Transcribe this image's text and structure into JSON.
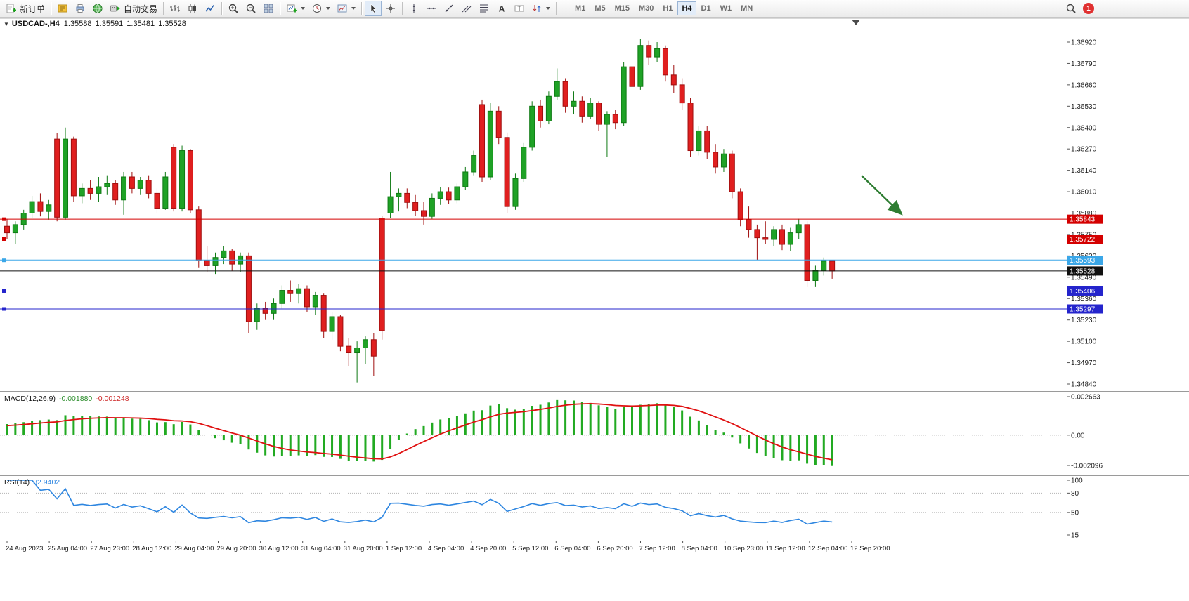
{
  "toolbar": {
    "new_order_label": "新订单",
    "autotrading_label": "自动交易",
    "timeframes": [
      "M1",
      "M5",
      "M15",
      "M30",
      "H1",
      "H4",
      "D1",
      "W1",
      "MN"
    ],
    "active_timeframe": "H4",
    "notification_count": "1",
    "icon_names": [
      "new-order-icon",
      "editor-icon",
      "printer-icon",
      "globe-icon",
      "autotrading-icon",
      "bar-chart-icon",
      "candlestick-chart-icon",
      "line-chart-icon",
      "zoom-in-icon",
      "zoom-out-icon",
      "tile-windows-icon",
      "new-chart-icon",
      "clock-icon",
      "template-icon",
      "cursor-icon",
      "crosshair-icon",
      "vertical-line-icon",
      "horizontal-line-icon",
      "trendline-icon",
      "channel-icon",
      "fibonacci-icon",
      "text-icon",
      "text-label-icon",
      "arrows-icon",
      "search-icon",
      "notification-badge"
    ]
  },
  "chart_title": {
    "collapse_icon": "▼",
    "symbol_period": "USDCAD-,H4",
    "open": "1.35588",
    "high": "1.35591",
    "low": "1.35481",
    "close": "1.35528"
  },
  "indicators": {
    "macd": {
      "label": "MACD(12,26,9)",
      "value_main": "-0.001880",
      "value_signal": "-0.001248",
      "y_ticks": [
        "0.002663",
        "0.00",
        "-0.002096"
      ],
      "histogram_color": "#22aa22",
      "signal_color": "#e01010"
    },
    "rsi": {
      "label": "RSI(14)",
      "value": "32.9402",
      "y_ticks": [
        "100",
        "80",
        "50",
        "15"
      ],
      "level_lines": [
        80,
        50
      ],
      "line_color": "#2e86e0"
    }
  },
  "chart_data": [
    {
      "type": "candlestick",
      "title": "USDCAD-,H4",
      "symbol": "USDCAD",
      "period": "H4",
      "up_color": "#1fa226",
      "down_color": "#e01f1f",
      "y_ticks": [
        "1.36920",
        "1.36790",
        "1.36660",
        "1.36530",
        "1.36400",
        "1.36270",
        "1.36140",
        "1.36010",
        "1.35880",
        "1.35750",
        "1.35620",
        "1.35490",
        "1.35360",
        "1.35230",
        "1.35100",
        "1.34970",
        "1.34840"
      ],
      "x_labels": [
        "24 Aug 2023",
        "25 Aug 04:00",
        "27 Aug 23:00",
        "28 Aug 12:00",
        "29 Aug 04:00",
        "29 Aug 20:00",
        "30 Aug 12:00",
        "31 Aug 04:00",
        "31 Aug 20:00",
        "1 Sep 12:00",
        "4 Sep 04:00",
        "4 Sep 20:00",
        "5 Sep 12:00",
        "6 Sep 04:00",
        "6 Sep 20:00",
        "7 Sep 12:00",
        "8 Sep 04:00",
        "10 Sep 23:00",
        "11 Sep 12:00",
        "12 Sep 04:00",
        "12 Sep 20:00"
      ],
      "price_lines": [
        {
          "label": "1.35843",
          "price": 1.35843,
          "color": "#d40000",
          "width": 1,
          "handle": true
        },
        {
          "label": "1.35722",
          "price": 1.35722,
          "color": "#d40000",
          "width": 1,
          "handle": true
        },
        {
          "label": "1.35593",
          "price": 1.35593,
          "color": "#3ba7e8",
          "width": 2,
          "handle": true
        },
        {
          "label": "1.35528",
          "price": 1.35528,
          "color": "#101010",
          "width": 1,
          "handle": false,
          "is_current_price": true
        },
        {
          "label": "1.35406",
          "price": 1.35406,
          "color": "#2424cc",
          "width": 1,
          "handle": true
        },
        {
          "label": "1.35297",
          "price": 1.35297,
          "color": "#2424cc",
          "width": 1,
          "handle": true
        }
      ],
      "annotations": [
        {
          "type": "arrow",
          "direction": "down-right",
          "color": "#2e7d32",
          "points_to_price": 1.35843
        }
      ],
      "candles": [
        [
          1.358,
          1.35845,
          1.3572,
          1.3576
        ],
        [
          1.3576,
          1.3583,
          1.3569,
          1.3581
        ],
        [
          1.3581,
          1.359,
          1.3578,
          1.3588
        ],
        [
          1.3588,
          1.35985,
          1.3585,
          1.3595
        ],
        [
          1.3595,
          1.36,
          1.3586,
          1.3589
        ],
        [
          1.3589,
          1.3596,
          1.3584,
          1.3593
        ],
        [
          1.3633,
          1.36365,
          1.3583,
          1.35855
        ],
        [
          1.35855,
          1.364,
          1.3584,
          1.3633
        ],
        [
          1.3633,
          1.36345,
          1.3595,
          1.35985
        ],
        [
          1.35985,
          1.3606,
          1.3594,
          1.3603
        ],
        [
          1.3603,
          1.3608,
          1.3596,
          1.36
        ],
        [
          1.36,
          1.361,
          1.3595,
          1.3604
        ],
        [
          1.3604,
          1.3611,
          1.3599,
          1.3606
        ],
        [
          1.3606,
          1.3608,
          1.3593,
          1.3596
        ],
        [
          1.3596,
          1.3613,
          1.3587,
          1.361
        ],
        [
          1.361,
          1.3613,
          1.36,
          1.3603
        ],
        [
          1.3603,
          1.361,
          1.3599,
          1.3608
        ],
        [
          1.3608,
          1.3611,
          1.3597,
          1.36
        ],
        [
          1.36,
          1.3603,
          1.3588,
          1.3591
        ],
        [
          1.3591,
          1.3613,
          1.359,
          1.361
        ],
        [
          1.3628,
          1.363,
          1.3589,
          1.3591
        ],
        [
          1.3591,
          1.3629,
          1.3589,
          1.3626
        ],
        [
          1.3626,
          1.3627,
          1.3588,
          1.359
        ],
        [
          1.359,
          1.3592,
          1.3555,
          1.3559
        ],
        [
          1.3559,
          1.3568,
          1.3552,
          1.3556
        ],
        [
          1.3556,
          1.3564,
          1.3551,
          1.3561
        ],
        [
          1.3561,
          1.3568,
          1.3557,
          1.3565
        ],
        [
          1.3565,
          1.3566,
          1.3553,
          1.3557
        ],
        [
          1.3557,
          1.3564,
          1.3552,
          1.3562
        ],
        [
          1.3562,
          1.3564,
          1.3515,
          1.3522
        ],
        [
          1.3522,
          1.3533,
          1.3517,
          1.353
        ],
        [
          1.353,
          1.3534,
          1.3523,
          1.3527
        ],
        [
          1.3527,
          1.3536,
          1.3523,
          1.3533
        ],
        [
          1.3533,
          1.3544,
          1.353,
          1.3541
        ],
        [
          1.3541,
          1.3547,
          1.3534,
          1.3539
        ],
        [
          1.3539,
          1.3545,
          1.3533,
          1.3542
        ],
        [
          1.3542,
          1.3544,
          1.3528,
          1.3531
        ],
        [
          1.3531,
          1.354,
          1.3526,
          1.3538
        ],
        [
          1.3538,
          1.3539,
          1.3512,
          1.3516
        ],
        [
          1.3516,
          1.3528,
          1.3511,
          1.3525
        ],
        [
          1.3525,
          1.3526,
          1.3504,
          1.3507
        ],
        [
          1.3507,
          1.3512,
          1.3495,
          1.3503
        ],
        [
          1.3503,
          1.351,
          1.3485,
          1.3506
        ],
        [
          1.3506,
          1.3513,
          1.3496,
          1.3511
        ],
        [
          1.3511,
          1.3515,
          1.3489,
          1.3501
        ],
        [
          1.3585,
          1.35865,
          1.3511,
          1.35165
        ],
        [
          1.3588,
          1.3613,
          1.3585,
          1.3598
        ],
        [
          1.3598,
          1.3603,
          1.3589,
          1.36
        ],
        [
          1.36,
          1.3603,
          1.3591,
          1.35945
        ],
        [
          1.35945,
          1.3599,
          1.35865,
          1.35895
        ],
        [
          1.35895,
          1.3595,
          1.3581,
          1.3586
        ],
        [
          1.3586,
          1.36,
          1.35845,
          1.3597
        ],
        [
          1.3597,
          1.3604,
          1.3593,
          1.3601
        ],
        [
          1.3601,
          1.36035,
          1.35935,
          1.3596
        ],
        [
          1.3596,
          1.3606,
          1.3594,
          1.3604
        ],
        [
          1.3604,
          1.3616,
          1.3602,
          1.3613
        ],
        [
          1.3613,
          1.3626,
          1.3611,
          1.3623
        ],
        [
          1.3654,
          1.3657,
          1.3607,
          1.361
        ],
        [
          1.361,
          1.3655,
          1.3608,
          1.365
        ],
        [
          1.365,
          1.3653,
          1.363,
          1.3634
        ],
        [
          1.3634,
          1.3637,
          1.3588,
          1.3592
        ],
        [
          1.3592,
          1.3612,
          1.359,
          1.3609
        ],
        [
          1.3609,
          1.3631,
          1.3607,
          1.3628
        ],
        [
          1.3628,
          1.3656,
          1.3626,
          1.3653
        ],
        [
          1.3653,
          1.3657,
          1.364,
          1.3644
        ],
        [
          1.3644,
          1.3662,
          1.3642,
          1.3659
        ],
        [
          1.3659,
          1.3676,
          1.3657,
          1.3668
        ],
        [
          1.3668,
          1.367,
          1.3649,
          1.3653
        ],
        [
          1.3653,
          1.3662,
          1.3648,
          1.3656
        ],
        [
          1.3656,
          1.3659,
          1.3643,
          1.3647
        ],
        [
          1.3647,
          1.3658,
          1.3645,
          1.3655
        ],
        [
          1.3655,
          1.3656,
          1.3638,
          1.3642
        ],
        [
          1.3642,
          1.365,
          1.3622,
          1.3648
        ],
        [
          1.3648,
          1.3651,
          1.3639,
          1.3643
        ],
        [
          1.3643,
          1.368,
          1.3641,
          1.3677
        ],
        [
          1.3677,
          1.368,
          1.3661,
          1.3665
        ],
        [
          1.3665,
          1.3694,
          1.3663,
          1.369
        ],
        [
          1.369,
          1.3693,
          1.3678,
          1.3683
        ],
        [
          1.3683,
          1.3692,
          1.368,
          1.3688
        ],
        [
          1.3688,
          1.369,
          1.3668,
          1.3672
        ],
        [
          1.3672,
          1.3678,
          1.3661,
          1.3666
        ],
        [
          1.3666,
          1.367,
          1.3651,
          1.3655
        ],
        [
          1.3655,
          1.3658,
          1.3622,
          1.3626
        ],
        [
          1.3626,
          1.3641,
          1.3623,
          1.3638
        ],
        [
          1.3638,
          1.3641,
          1.3621,
          1.3625
        ],
        [
          1.3625,
          1.363,
          1.3612,
          1.3616
        ],
        [
          1.3616,
          1.3627,
          1.3613,
          1.3624
        ],
        [
          1.3624,
          1.3626,
          1.3597,
          1.3601
        ],
        [
          1.3601,
          1.3603,
          1.358,
          1.3584
        ],
        [
          1.3584,
          1.3592,
          1.3573,
          1.3578
        ],
        [
          1.3578,
          1.3581,
          1.3559,
          1.3573
        ],
        [
          1.3573,
          1.3583,
          1.3569,
          1.3572
        ],
        [
          1.3572,
          1.358,
          1.3568,
          1.3578
        ],
        [
          1.3578,
          1.3581,
          1.35655,
          1.3569
        ],
        [
          1.3569,
          1.3579,
          1.3565,
          1.3576
        ],
        [
          1.3576,
          1.35845,
          1.3572,
          1.3581
        ],
        [
          1.3581,
          1.3583,
          1.3543,
          1.3547
        ],
        [
          1.3547,
          1.3556,
          1.3543,
          1.3553
        ],
        [
          1.3553,
          1.3561,
          1.355,
          1.35588
        ],
        [
          1.35588,
          1.35591,
          1.35481,
          1.35528
        ]
      ]
    },
    {
      "type": "bar",
      "name": "MACD(12,26,9)",
      "values_display": [
        "-0.001880",
        "-0.001248"
      ],
      "y_ticks": [
        "0.002663",
        "0.00",
        "-0.002096"
      ]
    },
    {
      "type": "line",
      "name": "RSI(14)",
      "value_display": "32.9402",
      "y_ticks": [
        "100",
        "80",
        "50",
        "15"
      ]
    }
  ]
}
